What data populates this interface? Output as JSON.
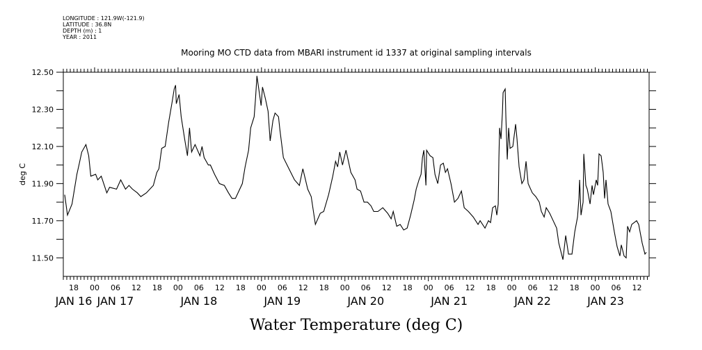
{
  "chart_data": {
    "type": "line",
    "metadata_lines": [
      "LONGITUDE : 121.9W(-121.9)",
      "LATITUDE : 36.8N",
      "DEPTH (m) : 1",
      "YEAR : 2011"
    ],
    "title": "Mooring MO CTD data from MBARI instrument id 1337 at original sampling intervals",
    "xlabel": "Water Temperature (deg C)",
    "ylabel": "deg C",
    "x_units": "hours since JAN 16 00:00",
    "xlim": [
      15.0,
      183.5
    ],
    "ylim": [
      11.4,
      12.5
    ],
    "yticks_labeled": [
      "12.50",
      "12.30",
      "12.10",
      "11.90",
      "11.70",
      "11.50"
    ],
    "ytick_values_labeled": [
      12.5,
      12.3,
      12.1,
      11.9,
      11.7,
      11.5
    ],
    "ytick_values_minor": [
      12.4,
      12.2,
      12.0,
      11.8,
      11.6
    ],
    "hour_tick_labels": [
      {
        "h": 18,
        "label": "18"
      },
      {
        "h": 24,
        "label": "00"
      },
      {
        "h": 30,
        "label": "06"
      },
      {
        "h": 36,
        "label": "12"
      },
      {
        "h": 42,
        "label": "18"
      },
      {
        "h": 48,
        "label": "00"
      },
      {
        "h": 54,
        "label": "06"
      },
      {
        "h": 60,
        "label": "12"
      },
      {
        "h": 66,
        "label": "18"
      },
      {
        "h": 72,
        "label": "00"
      },
      {
        "h": 78,
        "label": "06"
      },
      {
        "h": 84,
        "label": "12"
      },
      {
        "h": 90,
        "label": "18"
      },
      {
        "h": 96,
        "label": "00"
      },
      {
        "h": 102,
        "label": "06"
      },
      {
        "h": 108,
        "label": "12"
      },
      {
        "h": 114,
        "label": "18"
      },
      {
        "h": 120,
        "label": "00"
      },
      {
        "h": 126,
        "label": "06"
      },
      {
        "h": 132,
        "label": "12"
      },
      {
        "h": 138,
        "label": "18"
      },
      {
        "h": 144,
        "label": "00"
      },
      {
        "h": 150,
        "label": "06"
      },
      {
        "h": 156,
        "label": "12"
      },
      {
        "h": 162,
        "label": "18"
      },
      {
        "h": 168,
        "label": "00"
      },
      {
        "h": 174,
        "label": "06"
      },
      {
        "h": 180,
        "label": "12"
      }
    ],
    "day_labels": [
      {
        "h": 18,
        "label": "JAN 16"
      },
      {
        "h": 30,
        "label": "JAN 17"
      },
      {
        "h": 54,
        "label": "JAN 18"
      },
      {
        "h": 78,
        "label": "JAN 19"
      },
      {
        "h": 102,
        "label": "JAN 20"
      },
      {
        "h": 126,
        "label": "JAN 21"
      },
      {
        "h": 150,
        "label": "JAN 22"
      },
      {
        "h": 171,
        "label": "JAN 23"
      }
    ],
    "series": [
      {
        "name": "Water Temperature",
        "color": "#000000",
        "points": [
          [
            15.4,
            11.84
          ],
          [
            16.2,
            11.73
          ],
          [
            17.5,
            11.79
          ],
          [
            18.9,
            11.95
          ],
          [
            19.5,
            12.0
          ],
          [
            20.3,
            12.07
          ],
          [
            21.5,
            12.11
          ],
          [
            22.3,
            12.05
          ],
          [
            22.9,
            11.94
          ],
          [
            24.3,
            11.95
          ],
          [
            24.9,
            11.92
          ],
          [
            25.9,
            11.94
          ],
          [
            27.5,
            11.85
          ],
          [
            28.3,
            11.88
          ],
          [
            30.3,
            11.87
          ],
          [
            31.5,
            11.92
          ],
          [
            32.9,
            11.87
          ],
          [
            33.9,
            11.89
          ],
          [
            34.9,
            11.87
          ],
          [
            36.3,
            11.85
          ],
          [
            37.3,
            11.83
          ],
          [
            38.9,
            11.85
          ],
          [
            40.9,
            11.89
          ],
          [
            41.9,
            11.96
          ],
          [
            42.5,
            11.98
          ],
          [
            43.3,
            12.09
          ],
          [
            44.3,
            12.1
          ],
          [
            45.3,
            12.23
          ],
          [
            46.3,
            12.34
          ],
          [
            46.9,
            12.41
          ],
          [
            47.3,
            12.43
          ],
          [
            47.5,
            12.33
          ],
          [
            48.3,
            12.38
          ],
          [
            48.9,
            12.26
          ],
          [
            49.9,
            12.14
          ],
          [
            50.7,
            12.05
          ],
          [
            51.3,
            12.2
          ],
          [
            51.9,
            12.07
          ],
          [
            52.9,
            12.11
          ],
          [
            54.3,
            12.05
          ],
          [
            54.9,
            12.1
          ],
          [
            55.5,
            12.04
          ],
          [
            56.7,
            12.0
          ],
          [
            57.3,
            12.0
          ],
          [
            58.5,
            11.95
          ],
          [
            59.9,
            11.9
          ],
          [
            61.3,
            11.89
          ],
          [
            62.5,
            11.85
          ],
          [
            63.5,
            11.82
          ],
          [
            64.5,
            11.82
          ],
          [
            66.5,
            11.9
          ],
          [
            67.3,
            11.99
          ],
          [
            68.3,
            12.08
          ],
          [
            68.9,
            12.2
          ],
          [
            69.9,
            12.26
          ],
          [
            70.3,
            12.36
          ],
          [
            70.7,
            12.48
          ],
          [
            71.3,
            12.4
          ],
          [
            71.9,
            12.32
          ],
          [
            72.3,
            12.42
          ],
          [
            73.1,
            12.36
          ],
          [
            73.9,
            12.29
          ],
          [
            74.5,
            12.13
          ],
          [
            75.3,
            12.24
          ],
          [
            75.9,
            12.28
          ],
          [
            76.9,
            12.26
          ],
          [
            77.3,
            12.19
          ],
          [
            78.3,
            12.04
          ],
          [
            79.9,
            11.98
          ],
          [
            81.5,
            11.92
          ],
          [
            82.9,
            11.89
          ],
          [
            83.9,
            11.98
          ],
          [
            85.3,
            11.87
          ],
          [
            86.3,
            11.83
          ],
          [
            87.5,
            11.68
          ],
          [
            88.9,
            11.74
          ],
          [
            89.9,
            11.75
          ],
          [
            91.3,
            11.84
          ],
          [
            92.5,
            11.94
          ],
          [
            93.3,
            12.02
          ],
          [
            93.9,
            11.99
          ],
          [
            94.5,
            12.07
          ],
          [
            95.3,
            12.0
          ],
          [
            96.3,
            12.08
          ],
          [
            97.7,
            11.96
          ],
          [
            98.9,
            11.92
          ],
          [
            99.5,
            11.87
          ],
          [
            100.5,
            11.86
          ],
          [
            101.5,
            11.8
          ],
          [
            102.5,
            11.8
          ],
          [
            103.5,
            11.78
          ],
          [
            104.3,
            11.75
          ],
          [
            105.5,
            11.75
          ],
          [
            106.9,
            11.77
          ],
          [
            108.3,
            11.74
          ],
          [
            109.3,
            11.71
          ],
          [
            109.9,
            11.75
          ],
          [
            110.9,
            11.67
          ],
          [
            111.9,
            11.68
          ],
          [
            112.9,
            11.65
          ],
          [
            113.9,
            11.66
          ],
          [
            114.9,
            11.73
          ],
          [
            115.9,
            11.81
          ],
          [
            116.5,
            11.87
          ],
          [
            117.3,
            11.92
          ],
          [
            117.9,
            11.95
          ],
          [
            118.3,
            12.04
          ],
          [
            118.7,
            12.08
          ],
          [
            119.3,
            11.89
          ],
          [
            119.5,
            12.08
          ],
          [
            120.5,
            12.05
          ],
          [
            121.3,
            12.04
          ],
          [
            121.9,
            11.95
          ],
          [
            122.7,
            11.9
          ],
          [
            123.5,
            12.0
          ],
          [
            124.3,
            12.01
          ],
          [
            124.9,
            11.96
          ],
          [
            125.5,
            11.98
          ],
          [
            126.5,
            11.9
          ],
          [
            127.5,
            11.8
          ],
          [
            128.5,
            11.82
          ],
          [
            129.5,
            11.86
          ],
          [
            130.3,
            11.77
          ],
          [
            131.5,
            11.75
          ],
          [
            132.9,
            11.72
          ],
          [
            134.3,
            11.68
          ],
          [
            134.9,
            11.7
          ],
          [
            136.3,
            11.66
          ],
          [
            137.3,
            11.7
          ],
          [
            137.9,
            11.69
          ],
          [
            138.5,
            11.77
          ],
          [
            139.3,
            11.78
          ],
          [
            139.7,
            11.73
          ],
          [
            140.1,
            11.79
          ],
          [
            140.3,
            12.04
          ],
          [
            140.5,
            12.2
          ],
          [
            140.9,
            12.14
          ],
          [
            141.3,
            12.28
          ],
          [
            141.5,
            12.39
          ],
          [
            142.1,
            12.41
          ],
          [
            142.3,
            12.26
          ],
          [
            142.7,
            12.03
          ],
          [
            143.1,
            12.2
          ],
          [
            143.5,
            12.09
          ],
          [
            144.3,
            12.1
          ],
          [
            145.1,
            12.22
          ],
          [
            145.5,
            12.14
          ],
          [
            146.1,
            11.99
          ],
          [
            146.9,
            11.9
          ],
          [
            147.5,
            11.92
          ],
          [
            148.1,
            12.02
          ],
          [
            148.7,
            11.9
          ],
          [
            149.9,
            11.85
          ],
          [
            150.9,
            11.83
          ],
          [
            151.9,
            11.8
          ],
          [
            152.5,
            11.75
          ],
          [
            153.3,
            11.72
          ],
          [
            153.9,
            11.77
          ],
          [
            154.9,
            11.74
          ],
          [
            155.9,
            11.7
          ],
          [
            156.9,
            11.66
          ],
          [
            157.5,
            11.58
          ],
          [
            158.7,
            11.49
          ],
          [
            159.5,
            11.62
          ],
          [
            160.3,
            11.52
          ],
          [
            161.3,
            11.52
          ],
          [
            162.1,
            11.64
          ],
          [
            162.9,
            11.72
          ],
          [
            163.3,
            11.82
          ],
          [
            163.5,
            11.92
          ],
          [
            163.9,
            11.73
          ],
          [
            164.5,
            11.8
          ],
          [
            164.7,
            12.06
          ],
          [
            165.3,
            11.89
          ],
          [
            165.7,
            11.87
          ],
          [
            166.5,
            11.79
          ],
          [
            167.1,
            11.89
          ],
          [
            167.5,
            11.84
          ],
          [
            168.3,
            11.92
          ],
          [
            168.7,
            11.89
          ],
          [
            169.1,
            12.06
          ],
          [
            169.7,
            12.05
          ],
          [
            170.3,
            11.96
          ],
          [
            170.7,
            11.82
          ],
          [
            171.1,
            11.92
          ],
          [
            171.7,
            11.79
          ],
          [
            172.5,
            11.75
          ],
          [
            173.5,
            11.64
          ],
          [
            174.3,
            11.56
          ],
          [
            175.1,
            11.51
          ],
          [
            175.5,
            11.57
          ],
          [
            176.3,
            11.51
          ],
          [
            176.9,
            11.5
          ],
          [
            177.3,
            11.67
          ],
          [
            177.9,
            11.64
          ],
          [
            178.5,
            11.68
          ],
          [
            179.9,
            11.7
          ],
          [
            180.5,
            11.68
          ],
          [
            181.5,
            11.58
          ],
          [
            182.3,
            11.52
          ],
          [
            182.7,
            11.53
          ]
        ]
      }
    ],
    "grid": false,
    "legend": "none"
  }
}
